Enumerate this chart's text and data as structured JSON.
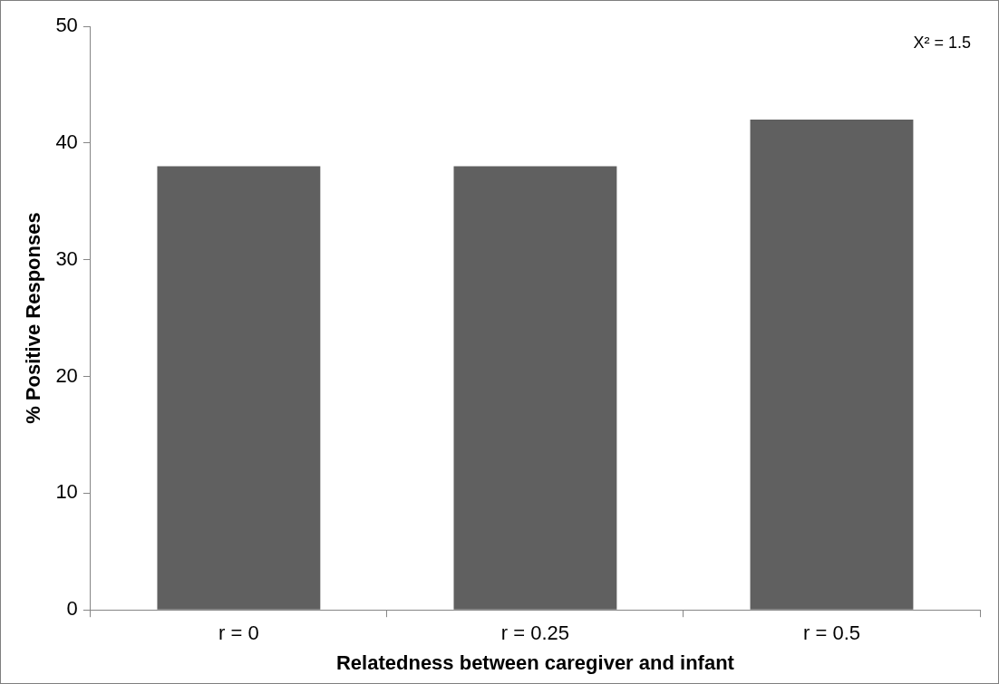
{
  "chart_data": {
    "type": "bar",
    "xlabel": "Relatedness between caregiver and infant",
    "ylabel": "% Positive Responses",
    "categories": [
      "r = 0",
      "r = 0.25",
      "r = 0.5"
    ],
    "values": [
      38,
      38,
      42
    ],
    "color": "#606060",
    "ylim": [
      0,
      50
    ],
    "yticks": [
      0,
      10,
      20,
      30,
      40,
      50
    ],
    "grid": false,
    "legend": false,
    "annotations": [
      "X² = 1.5"
    ]
  }
}
